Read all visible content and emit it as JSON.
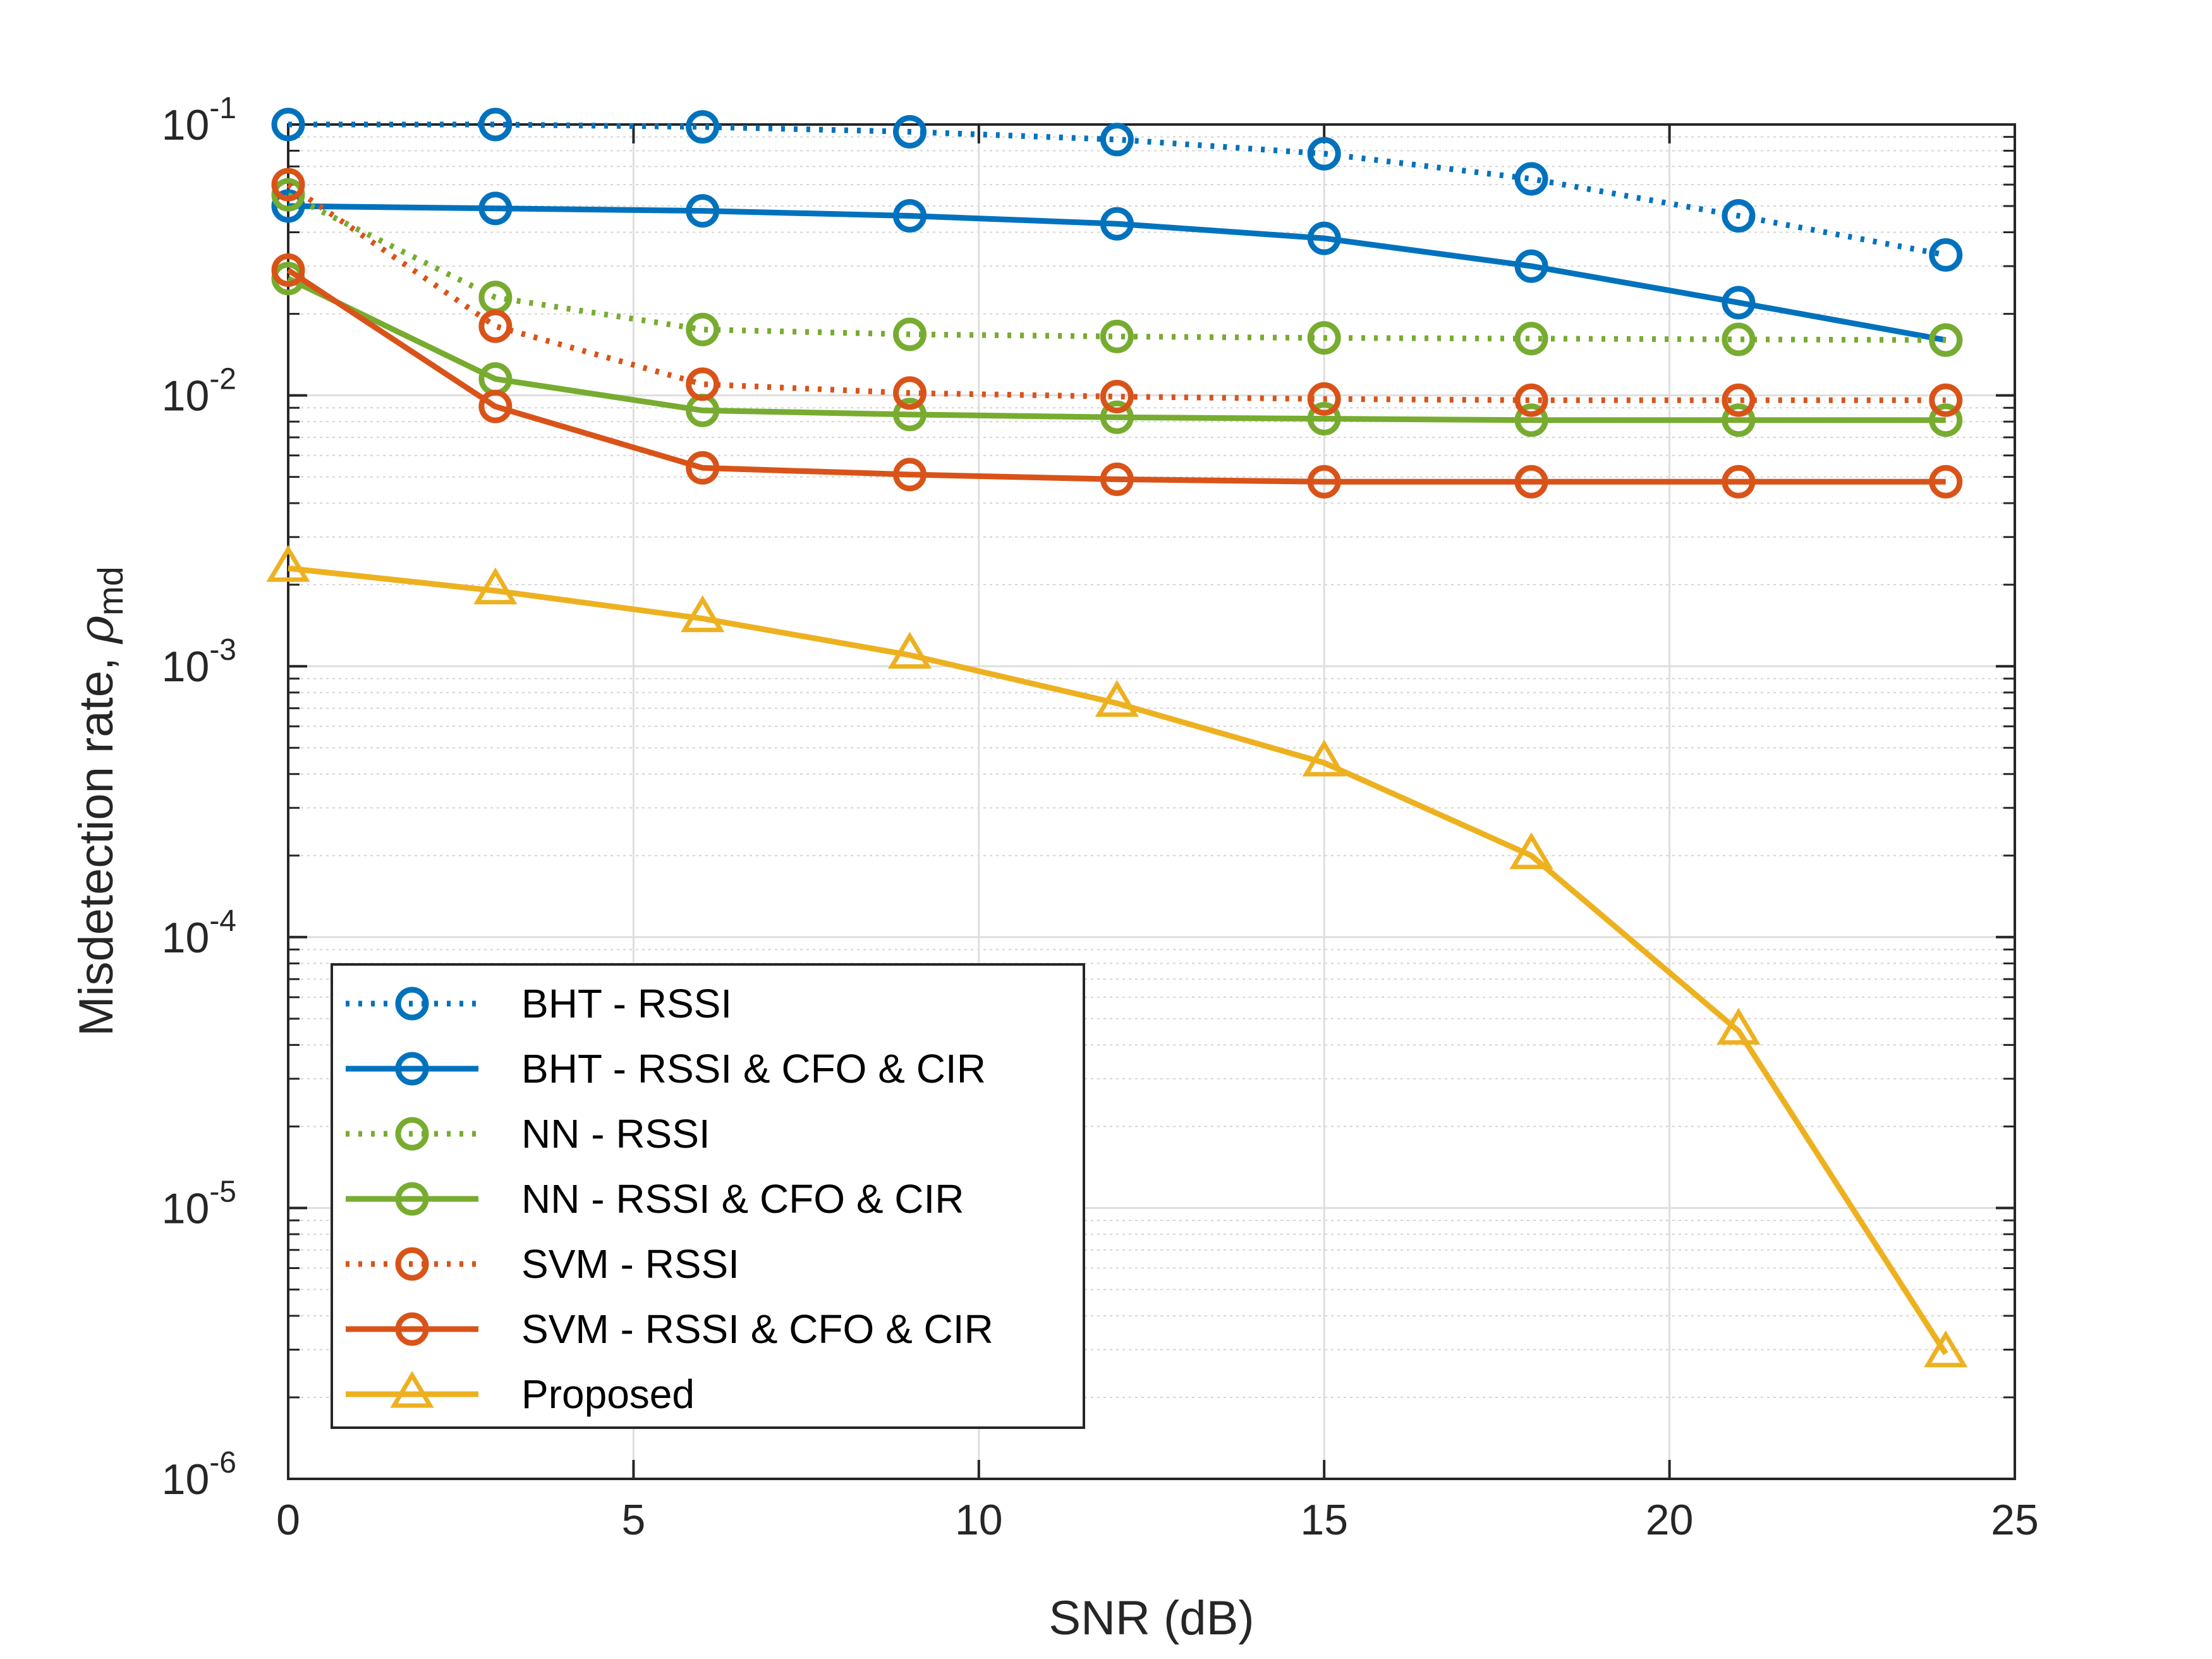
{
  "chart_data": {
    "type": "line",
    "title": "",
    "xlabel": "SNR (dB)",
    "ylabel_main": "Misdetection rate, ",
    "ylabel_symbol": "ρ",
    "ylabel_subscript": "md",
    "xlim": [
      0,
      25
    ],
    "ylim": [
      1e-06,
      0.1
    ],
    "yscale": "log",
    "grid": true,
    "legend_position": "bottom-left",
    "x": [
      0,
      3,
      6,
      9,
      12,
      15,
      18,
      21,
      24
    ],
    "x_ticks": [
      {
        "value": 0,
        "label": "0"
      },
      {
        "value": 5,
        "label": "5"
      },
      {
        "value": 10,
        "label": "10"
      },
      {
        "value": 15,
        "label": "15"
      },
      {
        "value": 20,
        "label": "20"
      },
      {
        "value": 25,
        "label": "25"
      }
    ],
    "y_ticks": [
      {
        "value": 0.1,
        "base": "10",
        "exp": "-1"
      },
      {
        "value": 0.01,
        "base": "10",
        "exp": "-2"
      },
      {
        "value": 0.001,
        "base": "10",
        "exp": "-3"
      },
      {
        "value": 0.0001,
        "base": "10",
        "exp": "-4"
      },
      {
        "value": 1e-05,
        "base": "10",
        "exp": "-5"
      },
      {
        "value": 1e-06,
        "base": "10",
        "exp": "-6"
      }
    ],
    "series": [
      {
        "name": "BHT - RSSI",
        "color": "#0072BD",
        "dash": "dotted",
        "marker": "circle",
        "values": [
          0.1,
          0.1,
          0.098,
          0.094,
          0.088,
          0.078,
          0.063,
          0.046,
          0.033
        ]
      },
      {
        "name": "BHT - RSSI & CFO & CIR",
        "color": "#0072BD",
        "dash": "solid",
        "marker": "circle",
        "values": [
          0.05,
          0.049,
          0.048,
          0.046,
          0.043,
          0.038,
          0.03,
          0.022,
          0.016
        ]
      },
      {
        "name": "NN - RSSI",
        "color": "#77AC30",
        "dash": "dotted",
        "marker": "circle",
        "values": [
          0.055,
          0.023,
          0.0175,
          0.0168,
          0.0165,
          0.0163,
          0.0162,
          0.0161,
          0.016
        ]
      },
      {
        "name": "NN - RSSI & CFO & CIR",
        "color": "#77AC30",
        "dash": "solid",
        "marker": "circle",
        "values": [
          0.027,
          0.0115,
          0.0088,
          0.0085,
          0.0083,
          0.0082,
          0.0081,
          0.0081,
          0.0081
        ]
      },
      {
        "name": "SVM - RSSI",
        "color": "#D95319",
        "dash": "dotted",
        "marker": "circle",
        "values": [
          0.06,
          0.018,
          0.011,
          0.0102,
          0.0099,
          0.0097,
          0.0096,
          0.0096,
          0.0096
        ]
      },
      {
        "name": "SVM - RSSI & CFO & CIR",
        "color": "#D95319",
        "dash": "solid",
        "marker": "circle",
        "values": [
          0.029,
          0.0091,
          0.0054,
          0.0051,
          0.0049,
          0.0048,
          0.0048,
          0.0048,
          0.0048
        ]
      },
      {
        "name": "Proposed",
        "color": "#EDB120",
        "dash": "solid",
        "marker": "triangle",
        "values": [
          0.0023,
          0.0019,
          0.0015,
          0.0011,
          0.00073,
          0.00044,
          0.0002,
          4.5e-05,
          2.9e-06
        ]
      }
    ]
  }
}
